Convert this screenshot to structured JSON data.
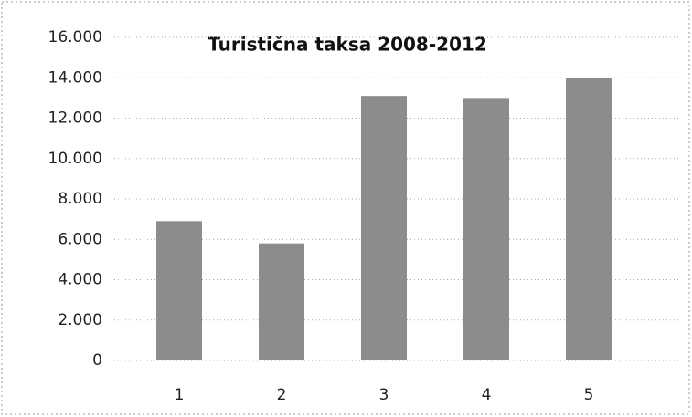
{
  "chart_data": {
    "type": "bar",
    "title": "Turistična taksa 2008-2012",
    "categories": [
      "1",
      "2",
      "3",
      "4",
      "5"
    ],
    "values": [
      6900,
      5800,
      13100,
      13000,
      14000
    ],
    "color": "#8c8c8c",
    "ylim": [
      0,
      16000
    ],
    "yticks": [
      0,
      {
        "value": 2000,
        "label": "2.000"
      },
      {
        "value": 4000,
        "label": "4.000"
      },
      {
        "value": 6000,
        "label": "6.000"
      },
      {
        "value": 8000,
        "label": "8.000"
      },
      {
        "value": 10000,
        "label": "10.000"
      },
      {
        "value": 12000,
        "label": "12.000"
      },
      {
        "value": 14000,
        "label": "14.000"
      },
      {
        "value": 16000,
        "label": "16.000"
      }
    ],
    "grid": true
  }
}
